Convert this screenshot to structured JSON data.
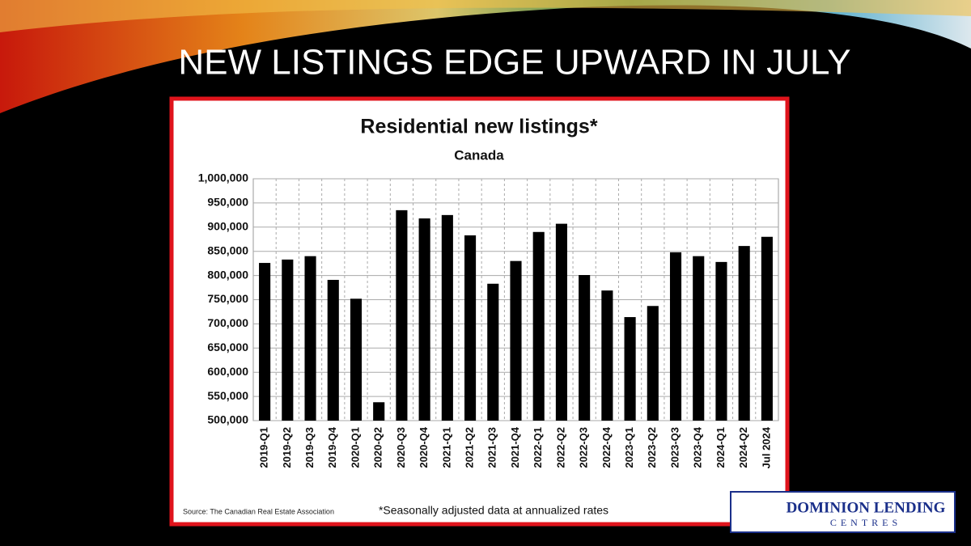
{
  "slide_title": "NEW LISTINGS EDGE UPWARD IN JULY",
  "logo": {
    "line1": "DOMINION LENDING",
    "line2": "CENTRES"
  },
  "chart_data": {
    "type": "bar",
    "title": "Residential new listings*",
    "subtitle": "Canada",
    "source": "Source: The Canadian Real Estate Association",
    "footnote": "*Seasonally adjusted data at annualized rates",
    "categories": [
      "2019-Q1",
      "2019-Q2",
      "2019-Q3",
      "2019-Q4",
      "2020-Q1",
      "2020-Q2",
      "2020-Q3",
      "2020-Q4",
      "2021-Q1",
      "2021-Q2",
      "2021-Q3",
      "2021-Q4",
      "2022-Q1",
      "2022-Q2",
      "2022-Q3",
      "2022-Q4",
      "2023-Q1",
      "2023-Q2",
      "2023-Q3",
      "2023-Q4",
      "2024-Q1",
      "2024-Q2",
      "Jul 2024"
    ],
    "values": [
      826000,
      833000,
      840000,
      791000,
      752000,
      538000,
      935000,
      918000,
      925000,
      883000,
      783000,
      830000,
      890000,
      907000,
      801000,
      769000,
      714000,
      737000,
      848000,
      840000,
      828000,
      861000,
      880000
    ],
    "color": "#000000",
    "ylim": [
      500000,
      1000000
    ],
    "yticks": [
      {
        "value": 500000,
        "label": "500,000"
      },
      {
        "value": 550000,
        "label": "550,000"
      },
      {
        "value": 600000,
        "label": "600,000"
      },
      {
        "value": 650000,
        "label": "650,000"
      },
      {
        "value": 700000,
        "label": "700,000"
      },
      {
        "value": 750000,
        "label": "750,000"
      },
      {
        "value": 800000,
        "label": "800,000"
      },
      {
        "value": 850000,
        "label": "850,000"
      },
      {
        "value": 900000,
        "label": "900,000"
      },
      {
        "value": 950000,
        "label": "950,000"
      },
      {
        "value": 1000000,
        "label": "1,000,000"
      }
    ],
    "grid": true
  }
}
